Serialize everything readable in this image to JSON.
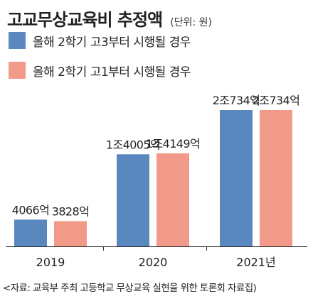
{
  "header": {
    "title": "고교무상교육비 추정액",
    "unit": "(단위: 원)"
  },
  "chart_data": {
    "type": "bar",
    "title": "고교무상교육비 추정액",
    "unit": "(단위: 원)",
    "categories": [
      "2019",
      "2020",
      "2021년"
    ],
    "series": [
      {
        "name": "올해 2학기 고3부터 시행될 경우",
        "color": "#5b87bf",
        "values": [
          4066,
          14005,
          20734
        ],
        "labels": [
          "4066억",
          "1조4005억",
          "2조734억"
        ]
      },
      {
        "name": "올해 2학기 고1부터 시행될 경우",
        "color": "#f29a8a",
        "values": [
          3828,
          14149,
          20734
        ],
        "labels": [
          "3828억",
          "1조4149억",
          "2조734억"
        ]
      }
    ],
    "value_unit": "억 원",
    "ylim": [
      0,
      20734
    ],
    "grid": false,
    "legend_position": "top-left"
  },
  "footer": {
    "source": "<자료: 교육부 주최 고등학교 무상교육 실현을 위한 토론회 자료집)"
  }
}
